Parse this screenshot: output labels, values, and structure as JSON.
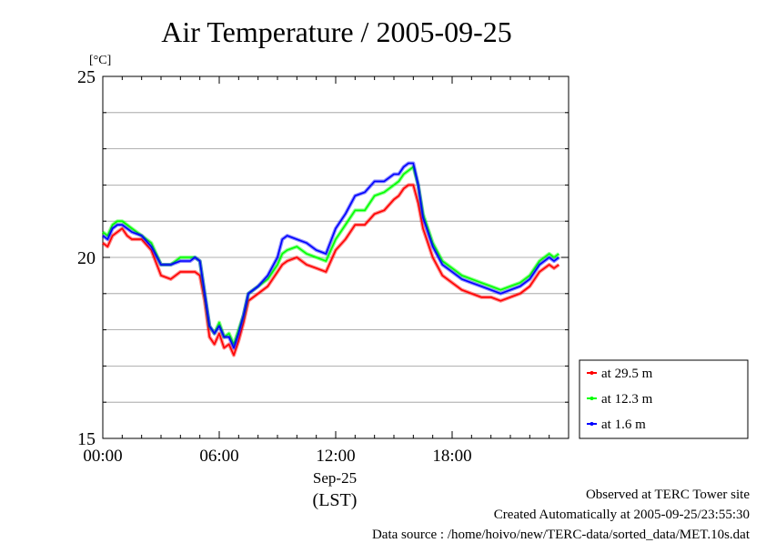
{
  "chart_data": {
    "type": "line",
    "title": "Air Temperature / 2005-09-25",
    "ylabel": "[°C]",
    "ylim": [
      15,
      25
    ],
    "y_ticks": [
      15,
      20,
      25
    ],
    "xlim": [
      0,
      24
    ],
    "x_ticks": [
      {
        "hour": 0,
        "label": "00:00"
      },
      {
        "hour": 6,
        "label": "06:00"
      },
      {
        "hour": 12,
        "label": "12:00"
      },
      {
        "hour": 18,
        "label": "18:00"
      }
    ],
    "x_sublabel_1": "Sep-25",
    "x_sublabel_2": "(LST)",
    "grid": "horizontal",
    "legend_position": "bottom-right-outside",
    "x": [
      0,
      0.25,
      0.5,
      0.75,
      1,
      1.25,
      1.5,
      2,
      2.5,
      3,
      3.5,
      4,
      4.5,
      4.75,
      5,
      5.25,
      5.5,
      5.75,
      6,
      6.25,
      6.5,
      6.75,
      7,
      7.25,
      7.5,
      8,
      8.5,
      9,
      9.25,
      9.5,
      10,
      10.5,
      11,
      11.5,
      12,
      12.5,
      13,
      13.5,
      14,
      14.5,
      15,
      15.25,
      15.5,
      15.75,
      16,
      16.25,
      16.5,
      17,
      17.5,
      18,
      18.5,
      19,
      19.5,
      20,
      20.5,
      21,
      21.5,
      22,
      22.5,
      23,
      23.25,
      23.5
    ],
    "series": [
      {
        "name": "at 29.5 m",
        "color": "#ff0000",
        "values": [
          20.4,
          20.3,
          20.6,
          20.7,
          20.8,
          20.6,
          20.5,
          20.5,
          20.2,
          19.5,
          19.4,
          19.6,
          19.6,
          19.6,
          19.5,
          18.8,
          17.8,
          17.6,
          17.9,
          17.5,
          17.6,
          17.3,
          17.7,
          18.2,
          18.8,
          19.0,
          19.2,
          19.6,
          19.8,
          19.9,
          20.0,
          19.8,
          19.7,
          19.6,
          20.2,
          20.5,
          20.9,
          20.9,
          21.2,
          21.3,
          21.6,
          21.7,
          21.9,
          22.0,
          22.0,
          21.5,
          20.8,
          20.0,
          19.5,
          19.3,
          19.1,
          19.0,
          18.9,
          18.9,
          18.8,
          18.9,
          19.0,
          19.2,
          19.6,
          19.8,
          19.7,
          19.8
        ]
      },
      {
        "name": "at 12.3 m",
        "color": "#00ff00",
        "values": [
          20.7,
          20.6,
          20.9,
          21.0,
          21.0,
          20.9,
          20.8,
          20.6,
          20.4,
          19.8,
          19.8,
          20.0,
          20.0,
          20.0,
          19.9,
          19.0,
          18.1,
          17.9,
          18.2,
          17.8,
          17.9,
          17.6,
          18.0,
          18.4,
          19.0,
          19.2,
          19.4,
          19.8,
          20.1,
          20.2,
          20.3,
          20.1,
          20.0,
          19.9,
          20.5,
          20.9,
          21.3,
          21.3,
          21.7,
          21.8,
          22.0,
          22.1,
          22.3,
          22.4,
          22.5,
          22.0,
          21.2,
          20.4,
          19.9,
          19.7,
          19.5,
          19.4,
          19.3,
          19.2,
          19.1,
          19.2,
          19.3,
          19.5,
          19.9,
          20.1,
          20.0,
          20.1
        ]
      },
      {
        "name": "at 1.6 m",
        "color": "#0000ff",
        "values": [
          20.6,
          20.5,
          20.8,
          20.9,
          20.9,
          20.8,
          20.7,
          20.6,
          20.3,
          19.8,
          19.8,
          19.9,
          19.9,
          20.0,
          19.9,
          19.0,
          18.1,
          17.9,
          18.1,
          17.8,
          17.8,
          17.5,
          17.9,
          18.4,
          19.0,
          19.2,
          19.5,
          20.0,
          20.5,
          20.6,
          20.5,
          20.4,
          20.2,
          20.1,
          20.8,
          21.2,
          21.7,
          21.8,
          22.1,
          22.1,
          22.3,
          22.3,
          22.5,
          22.6,
          22.6,
          22.0,
          21.1,
          20.3,
          19.8,
          19.6,
          19.4,
          19.3,
          19.2,
          19.1,
          19.0,
          19.1,
          19.2,
          19.4,
          19.8,
          20.0,
          19.9,
          20.0
        ]
      }
    ]
  },
  "footer": {
    "line1": "Observed at TERC Tower site",
    "line2": "Created Automatically at 2005-09-25/23:55:30",
    "line3": "Data source : /home/hoivo/new/TERC-data/sorted_data/MET.10s.dat"
  }
}
